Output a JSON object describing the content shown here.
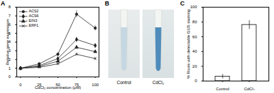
{
  "chart_data": [
    {
      "type": "line",
      "title": "A",
      "x": [
        0,
        25,
        50,
        75,
        100
      ],
      "series": [
        {
          "name": "ACS2",
          "color": "#222222",
          "marker": "circle",
          "values": [
            1,
            1.5,
            2.6,
            7.2,
            5.6
          ],
          "errors": [
            0.1,
            0.15,
            0.2,
            0.4,
            0.3
          ]
        },
        {
          "name": "ACS6",
          "color": "#222222",
          "marker": "diamond",
          "values": [
            1,
            1.3,
            2.1,
            4.3,
            3.6
          ],
          "errors": [
            0.1,
            0.1,
            0.15,
            0.2,
            0.2
          ]
        },
        {
          "name": "EIN3",
          "color": "#222222",
          "marker": "triangle",
          "values": [
            1,
            1.2,
            1.8,
            3.4,
            2.9
          ],
          "errors": [
            0.1,
            0.1,
            0.1,
            0.2,
            0.15
          ]
        },
        {
          "name": "ERF1",
          "color": "#222222",
          "marker": "times",
          "values": [
            1,
            1.1,
            1.5,
            2.6,
            2.1
          ],
          "errors": [
            0.1,
            0.1,
            0.1,
            0.15,
            0.15
          ]
        }
      ],
      "x_label": "CdCl₂ concentration (μM)",
      "y_label": "Relative gene expression",
      "xlim": [
        -5,
        105
      ],
      "xticks": [
        0,
        25,
        50,
        75,
        100
      ],
      "ylim": [
        0,
        8
      ],
      "yticks": [
        0,
        1,
        2,
        3,
        4,
        5,
        6,
        7,
        8
      ],
      "legend": "top-left",
      "grid": false
    },
    {
      "type": "bar",
      "title": "C",
      "categories": [
        "Control",
        "CdCl₂"
      ],
      "values": [
        6,
        76
      ],
      "errors": [
        3,
        6
      ],
      "color": "#ffffff",
      "y_label": "% Roots with detectable GUS staining",
      "ylim": [
        0,
        100
      ],
      "yticks": [
        0,
        20,
        40,
        60,
        80,
        100
      ],
      "grid": false
    }
  ],
  "image_panel": {
    "title": "B",
    "labels": [
      "Control",
      "CdCl₂"
    ]
  }
}
